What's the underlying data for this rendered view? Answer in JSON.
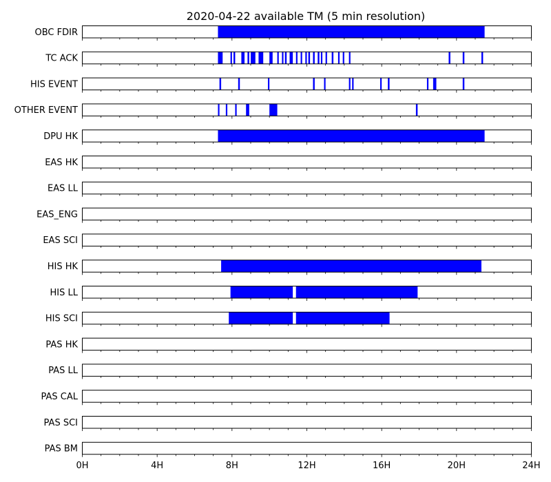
{
  "chart_data": {
    "type": "timeline",
    "title": "2020-04-22 available TM (5 min resolution)",
    "x_unit": "hours",
    "xlim": [
      0,
      24
    ],
    "x_ticks": [
      0,
      4,
      8,
      12,
      16,
      20,
      24
    ],
    "x_tick_labels": [
      "0H",
      "4H",
      "8H",
      "12H",
      "16H",
      "20H",
      "24H"
    ],
    "minor_tick_step": 1,
    "bar_color": "#0000ff",
    "rows": [
      {
        "label": "OBC FDIR",
        "intervals": [
          [
            7.25,
            21.5
          ]
        ]
      },
      {
        "label": "TC ACK",
        "intervals": [
          [
            7.25,
            7.5
          ],
          [
            7.92,
            8.0
          ],
          [
            8.08,
            8.17
          ],
          [
            8.5,
            8.67
          ],
          [
            8.83,
            8.92
          ],
          [
            9.0,
            9.25
          ],
          [
            9.42,
            9.67
          ],
          [
            10.0,
            10.17
          ],
          [
            10.42,
            10.5
          ],
          [
            10.67,
            10.75
          ],
          [
            10.83,
            10.92
          ],
          [
            11.08,
            11.25
          ],
          [
            11.42,
            11.5
          ],
          [
            11.67,
            11.75
          ],
          [
            11.92,
            12.0
          ],
          [
            12.08,
            12.17
          ],
          [
            12.33,
            12.42
          ],
          [
            12.58,
            12.67
          ],
          [
            12.75,
            12.83
          ],
          [
            13.0,
            13.08
          ],
          [
            13.33,
            13.42
          ],
          [
            13.67,
            13.75
          ],
          [
            13.92,
            14.0
          ],
          [
            14.25,
            14.33
          ],
          [
            19.58,
            19.67
          ],
          [
            20.33,
            20.42
          ],
          [
            21.33,
            21.42
          ]
        ]
      },
      {
        "label": "HIS EVENT",
        "intervals": [
          [
            7.33,
            7.42
          ],
          [
            8.33,
            8.42
          ],
          [
            9.92,
            10.0
          ],
          [
            12.33,
            12.42
          ],
          [
            12.92,
            13.0
          ],
          [
            14.25,
            14.33
          ],
          [
            14.42,
            14.5
          ],
          [
            15.92,
            16.0
          ],
          [
            16.33,
            16.42
          ],
          [
            18.42,
            18.5
          ],
          [
            18.75,
            18.83
          ],
          [
            18.83,
            18.92
          ],
          [
            20.33,
            20.42
          ]
        ]
      },
      {
        "label": "OTHER EVENT",
        "intervals": [
          [
            7.25,
            7.33
          ],
          [
            7.67,
            7.75
          ],
          [
            8.17,
            8.25
          ],
          [
            8.75,
            8.92
          ],
          [
            10.0,
            10.42
          ],
          [
            17.83,
            17.92
          ]
        ]
      },
      {
        "label": "DPU HK",
        "intervals": [
          [
            7.25,
            21.5
          ]
        ]
      },
      {
        "label": "EAS HK",
        "intervals": []
      },
      {
        "label": "EAS LL",
        "intervals": []
      },
      {
        "label": "EAS_ENG",
        "intervals": []
      },
      {
        "label": "EAS SCI",
        "intervals": []
      },
      {
        "label": "HIS HK",
        "intervals": [
          [
            7.42,
            21.33
          ]
        ]
      },
      {
        "label": "HIS LL",
        "intervals": [
          [
            7.92,
            11.25
          ],
          [
            11.42,
            17.92
          ]
        ]
      },
      {
        "label": "HIS SCI",
        "intervals": [
          [
            7.83,
            11.25
          ],
          [
            11.42,
            16.42
          ]
        ]
      },
      {
        "label": "PAS HK",
        "intervals": []
      },
      {
        "label": "PAS LL",
        "intervals": []
      },
      {
        "label": "PAS CAL",
        "intervals": []
      },
      {
        "label": "PAS SCI",
        "intervals": []
      },
      {
        "label": "PAS BM",
        "intervals": []
      }
    ]
  }
}
